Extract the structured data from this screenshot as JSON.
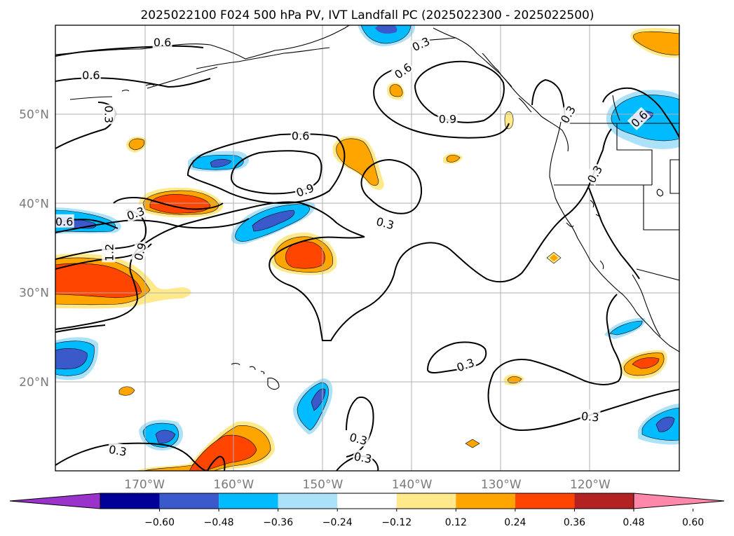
{
  "title": "2025022100 F024 500 hPa PV, IVT Landfall PC (2025022300 - 2025022500)",
  "map": {
    "lon_range": [
      -180,
      -110
    ],
    "lat_range": [
      10,
      60
    ],
    "lat_ticks": [
      {
        "value": 20,
        "label": "20°N"
      },
      {
        "value": 30,
        "label": "30°N"
      },
      {
        "value": 40,
        "label": "40°N"
      },
      {
        "value": 50,
        "label": "50°N"
      }
    ],
    "lon_ticks": [
      {
        "value": -170,
        "label": "170°W"
      },
      {
        "value": -160,
        "label": "160°W"
      },
      {
        "value": -150,
        "label": "150°W"
      },
      {
        "value": -140,
        "label": "140°W"
      },
      {
        "value": -130,
        "label": "130°W"
      },
      {
        "value": -120,
        "label": "120°W"
      }
    ],
    "grid": true,
    "contour_labels": [
      {
        "text": "0.6",
        "lon": -168.0,
        "lat": 58.1
      },
      {
        "text": "0.6",
        "lon": -176.0,
        "lat": 54.4
      },
      {
        "text": "0.3",
        "lon": -174.0,
        "lat": 50.0,
        "rot": 90
      },
      {
        "text": "0.6",
        "lon": -152.5,
        "lat": 47.6
      },
      {
        "text": "0.9",
        "lon": -152.0,
        "lat": 41.5,
        "rot": -20
      },
      {
        "text": "0.3",
        "lon": -171.0,
        "lat": 38.9,
        "rot": -20
      },
      {
        "text": "0.6",
        "lon": -179.0,
        "lat": 38.0
      },
      {
        "text": "0.3",
        "lon": -143.0,
        "lat": 37.8,
        "rot": 15
      },
      {
        "text": "1.2",
        "lon": -174.0,
        "lat": 34.5,
        "rot": -90
      },
      {
        "text": "0.9",
        "lon": -170.5,
        "lat": 34.6,
        "rot": -75
      },
      {
        "text": "0.3",
        "lon": -139.0,
        "lat": 57.9,
        "rot": -25
      },
      {
        "text": "0.6",
        "lon": -141.0,
        "lat": 54.9,
        "rot": -35
      },
      {
        "text": "0.9",
        "lon": -136.0,
        "lat": 49.5
      },
      {
        "text": "0.3",
        "lon": -122.5,
        "lat": 50.0,
        "rot": -60
      },
      {
        "text": "0.6",
        "lon": -114.5,
        "lat": 49.5,
        "rot": -45
      },
      {
        "text": "0.3",
        "lon": -119.5,
        "lat": 43.3,
        "rot": -60
      },
      {
        "text": "0.3",
        "lon": -134.0,
        "lat": 21.9,
        "rot": -20
      },
      {
        "text": "0.3",
        "lon": -120.0,
        "lat": 16.1,
        "rot": 5
      },
      {
        "text": "0.3",
        "lon": -146.0,
        "lat": 13.6,
        "rot": 15
      },
      {
        "text": "0.3",
        "lon": -145.5,
        "lat": 11.5,
        "rot": 10
      },
      {
        "text": "0.3",
        "lon": -173.0,
        "lat": 12.3,
        "rot": 10
      }
    ]
  },
  "colorbar": {
    "ticks": [
      "−0.60",
      "−0.48",
      "−0.36",
      "−0.24",
      "−0.12",
      "0.12",
      "0.24",
      "0.36",
      "0.48",
      "0.60"
    ],
    "colors": [
      "#9933cc",
      "#000099",
      "#3a5acc",
      "#00bbff",
      "#abe2fa",
      "#ffffff",
      "#ffe98a",
      "#ffa500",
      "#ff4500",
      "#b22222",
      "#ff88aa"
    ]
  }
}
